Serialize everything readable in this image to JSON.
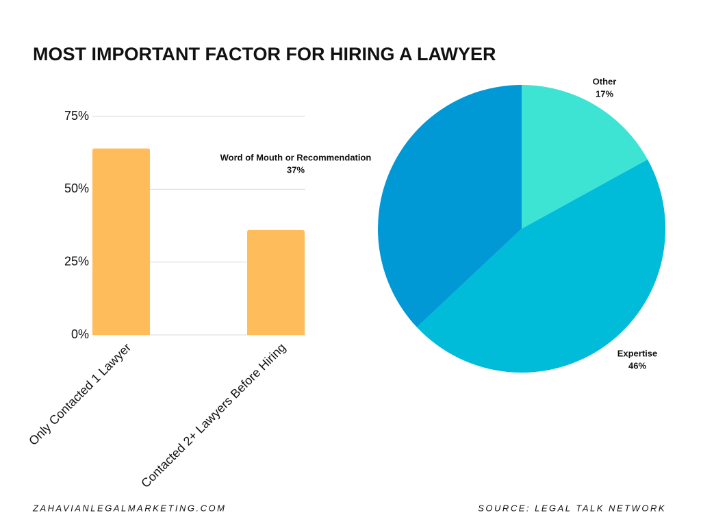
{
  "title": "MOST IMPORTANT FACTOR FOR HIRING A LAWYER",
  "website": "ZAHAVIANLEGALMARKETING.COM",
  "source": "SOURCE: LEGAL TALK NETWORK",
  "chart_data": [
    {
      "type": "bar",
      "categories": [
        "Only Contacted 1 Lawyer",
        "Contacted 2+ Lawyers Before Hiring"
      ],
      "values": [
        64,
        36
      ],
      "color": "#ffbc5a",
      "ylim": [
        0,
        75
      ],
      "yticks": [
        {
          "value": 0,
          "label": "0%"
        },
        {
          "value": 25,
          "label": "25%"
        },
        {
          "value": 50,
          "label": "50%"
        },
        {
          "value": 75,
          "label": "75%"
        }
      ],
      "grid": true
    },
    {
      "type": "pie",
      "categories": [
        "Other",
        "Expertise",
        "Word of Mouth or Recommendation"
      ],
      "values": [
        17,
        46,
        37
      ],
      "value_labels": [
        "17%",
        "46%",
        "37%"
      ],
      "colors": [
        "#3de4d4",
        "#00bcd9",
        "#0099d6"
      ]
    }
  ]
}
